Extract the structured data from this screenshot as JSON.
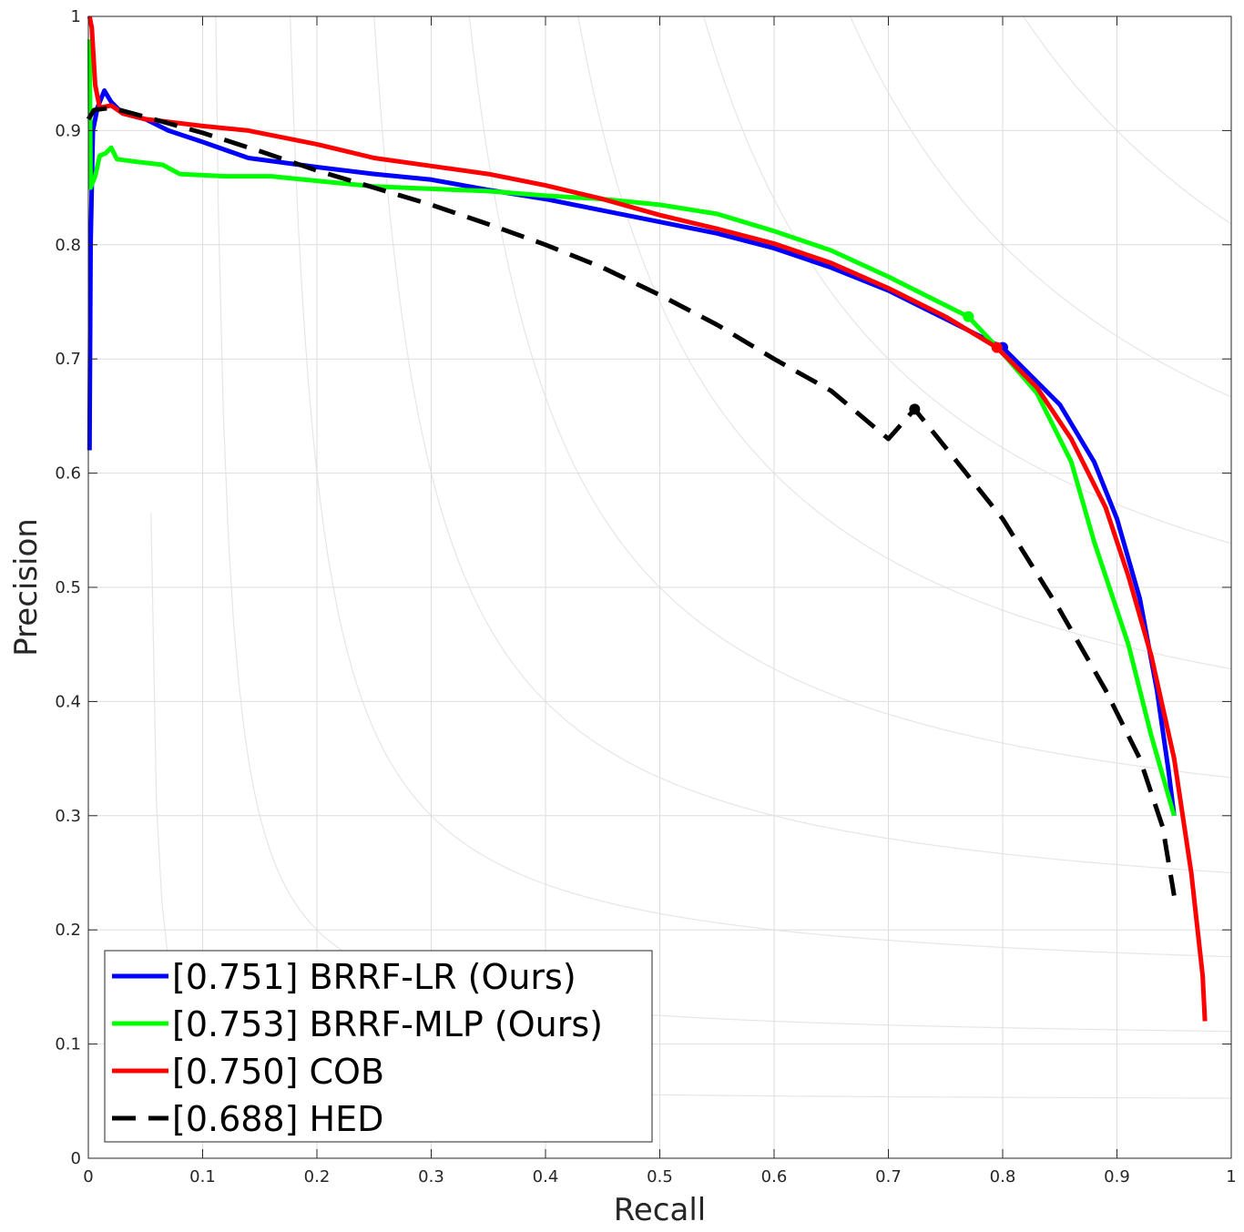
{
  "chart_data": {
    "type": "line",
    "title": "",
    "xlabel": "Recall",
    "ylabel": "Precision",
    "xlim": [
      0,
      1
    ],
    "ylim": [
      0,
      1
    ],
    "xticks": [
      "0",
      "0.1",
      "0.2",
      "0.3",
      "0.4",
      "0.5",
      "0.6",
      "0.7",
      "0.8",
      "0.9",
      "1"
    ],
    "yticks": [
      "0",
      "0.1",
      "0.2",
      "0.3",
      "0.4",
      "0.5",
      "0.6",
      "0.7",
      "0.8",
      "0.9",
      "1"
    ],
    "grid": true,
    "iso_f_curves": [
      0.1,
      0.2,
      0.3,
      0.4,
      0.5,
      0.6,
      0.7,
      0.8,
      0.9
    ],
    "legend_position": "bottom-left",
    "series": [
      {
        "name": "[0.751] BRRF-LR (Ours)",
        "color": "#0000ff",
        "dash": "solid",
        "best_point": [
          0.8,
          0.71
        ],
        "points": [
          [
            0.001,
            0.62
          ],
          [
            0.002,
            0.8
          ],
          [
            0.004,
            0.9
          ],
          [
            0.008,
            0.92
          ],
          [
            0.014,
            0.935
          ],
          [
            0.02,
            0.925
          ],
          [
            0.03,
            0.915
          ],
          [
            0.05,
            0.91
          ],
          [
            0.07,
            0.9
          ],
          [
            0.1,
            0.89
          ],
          [
            0.14,
            0.876
          ],
          [
            0.2,
            0.868
          ],
          [
            0.25,
            0.862
          ],
          [
            0.3,
            0.857
          ],
          [
            0.35,
            0.848
          ],
          [
            0.4,
            0.84
          ],
          [
            0.45,
            0.83
          ],
          [
            0.5,
            0.82
          ],
          [
            0.55,
            0.81
          ],
          [
            0.6,
            0.797
          ],
          [
            0.65,
            0.78
          ],
          [
            0.7,
            0.76
          ],
          [
            0.75,
            0.735
          ],
          [
            0.8,
            0.71
          ],
          [
            0.85,
            0.66
          ],
          [
            0.88,
            0.61
          ],
          [
            0.9,
            0.56
          ],
          [
            0.92,
            0.49
          ],
          [
            0.935,
            0.41
          ],
          [
            0.945,
            0.34
          ],
          [
            0.95,
            0.3
          ]
        ]
      },
      {
        "name": "[0.753] BRRF-MLP (Ours)",
        "color": "#00ff00",
        "dash": "solid",
        "best_point": [
          0.77,
          0.737
        ],
        "points": [
          [
            0.001,
            0.98
          ],
          [
            0.002,
            0.85
          ],
          [
            0.006,
            0.86
          ],
          [
            0.01,
            0.878
          ],
          [
            0.015,
            0.88
          ],
          [
            0.02,
            0.885
          ],
          [
            0.025,
            0.875
          ],
          [
            0.04,
            0.873
          ],
          [
            0.065,
            0.87
          ],
          [
            0.08,
            0.862
          ],
          [
            0.12,
            0.86
          ],
          [
            0.16,
            0.86
          ],
          [
            0.2,
            0.856
          ],
          [
            0.25,
            0.851
          ],
          [
            0.3,
            0.849
          ],
          [
            0.35,
            0.847
          ],
          [
            0.4,
            0.843
          ],
          [
            0.45,
            0.84
          ],
          [
            0.5,
            0.835
          ],
          [
            0.55,
            0.827
          ],
          [
            0.6,
            0.812
          ],
          [
            0.65,
            0.795
          ],
          [
            0.7,
            0.772
          ],
          [
            0.74,
            0.752
          ],
          [
            0.77,
            0.737
          ],
          [
            0.8,
            0.705
          ],
          [
            0.83,
            0.67
          ],
          [
            0.86,
            0.61
          ],
          [
            0.88,
            0.54
          ],
          [
            0.91,
            0.45
          ],
          [
            0.93,
            0.37
          ],
          [
            0.95,
            0.3
          ]
        ]
      },
      {
        "name": "[0.750] COB",
        "color": "#ff0000",
        "dash": "solid",
        "best_point": [
          0.795,
          0.71
        ],
        "points": [
          [
            0.001,
            1.0
          ],
          [
            0.003,
            0.99
          ],
          [
            0.006,
            0.94
          ],
          [
            0.01,
            0.92
          ],
          [
            0.02,
            0.922
          ],
          [
            0.03,
            0.915
          ],
          [
            0.05,
            0.91
          ],
          [
            0.1,
            0.904
          ],
          [
            0.14,
            0.9
          ],
          [
            0.2,
            0.888
          ],
          [
            0.25,
            0.876
          ],
          [
            0.3,
            0.869
          ],
          [
            0.35,
            0.862
          ],
          [
            0.4,
            0.852
          ],
          [
            0.45,
            0.84
          ],
          [
            0.5,
            0.826
          ],
          [
            0.55,
            0.814
          ],
          [
            0.6,
            0.801
          ],
          [
            0.65,
            0.784
          ],
          [
            0.7,
            0.762
          ],
          [
            0.75,
            0.737
          ],
          [
            0.795,
            0.71
          ],
          [
            0.83,
            0.675
          ],
          [
            0.86,
            0.63
          ],
          [
            0.89,
            0.57
          ],
          [
            0.91,
            0.51
          ],
          [
            0.93,
            0.44
          ],
          [
            0.95,
            0.35
          ],
          [
            0.965,
            0.25
          ],
          [
            0.975,
            0.16
          ],
          [
            0.977,
            0.12
          ]
        ]
      },
      {
        "name": "[0.688] HED",
        "color": "#000000",
        "dash": "dashed",
        "best_point": [
          0.723,
          0.656
        ],
        "points": [
          [
            0.0,
            0.91
          ],
          [
            0.005,
            0.918
          ],
          [
            0.02,
            0.92
          ],
          [
            0.05,
            0.912
          ],
          [
            0.1,
            0.898
          ],
          [
            0.15,
            0.882
          ],
          [
            0.2,
            0.865
          ],
          [
            0.25,
            0.85
          ],
          [
            0.3,
            0.835
          ],
          [
            0.35,
            0.818
          ],
          [
            0.4,
            0.8
          ],
          [
            0.45,
            0.78
          ],
          [
            0.5,
            0.756
          ],
          [
            0.55,
            0.73
          ],
          [
            0.6,
            0.7
          ],
          [
            0.65,
            0.672
          ],
          [
            0.7,
            0.63
          ],
          [
            0.723,
            0.656
          ],
          [
            0.76,
            0.61
          ],
          [
            0.8,
            0.56
          ],
          [
            0.85,
            0.48
          ],
          [
            0.89,
            0.41
          ],
          [
            0.92,
            0.35
          ],
          [
            0.94,
            0.29
          ],
          [
            0.95,
            0.23
          ]
        ]
      }
    ]
  }
}
